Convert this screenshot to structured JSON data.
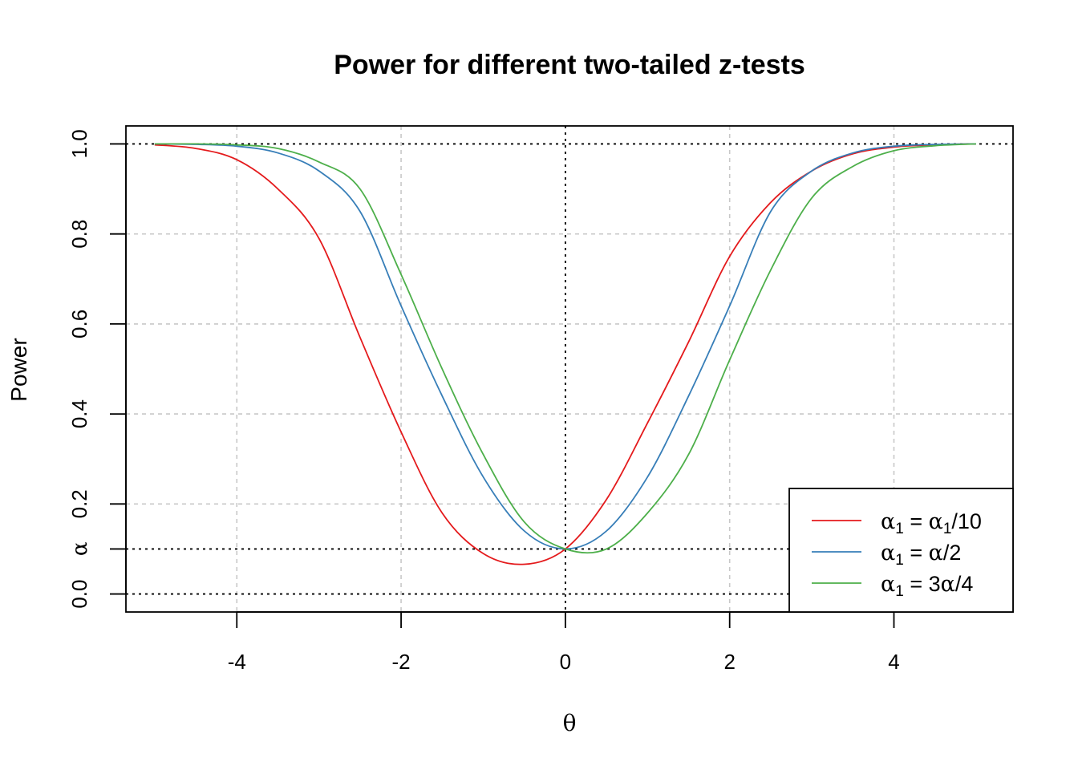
{
  "chart_data": {
    "type": "line",
    "title": "Power for different two-tailed z-tests",
    "xlabel": "θ",
    "ylabel": "Power",
    "xlim": [
      -5.35,
      5.45
    ],
    "ylim": [
      -0.04,
      1.04
    ],
    "x_ticks": [
      -4,
      -2,
      0,
      2,
      4
    ],
    "x_tick_labels": [
      "-4",
      "-2",
      "0",
      "2",
      "4"
    ],
    "y_ticks": [
      0.0,
      0.1,
      0.2,
      0.4,
      0.6,
      0.8,
      1.0
    ],
    "y_tick_labels": [
      "0.0",
      "α",
      "0.2",
      "0.4",
      "0.6",
      "0.8",
      "1.0"
    ],
    "grid": true,
    "reference_lines": {
      "horizontal": [
        0.0,
        0.1,
        1.0
      ],
      "vertical": [
        0
      ]
    },
    "legend_position": "bottom-right",
    "legend": {
      "red": [
        "α",
        "1",
        " = ",
        "α",
        "1",
        "/10"
      ],
      "blue": [
        "α",
        "1",
        " = ",
        "α",
        "/2"
      ],
      "green": [
        "α",
        "1",
        " = ",
        "3",
        "α",
        "/4"
      ]
    },
    "series": [
      {
        "key": "red",
        "color": "#E41A1C",
        "x": [
          -5,
          -4.5,
          -4,
          -3.5,
          -3,
          -2.5,
          -2,
          -1.5,
          -1,
          -0.5,
          0,
          0.5,
          1,
          1.5,
          2,
          2.5,
          3,
          3.5,
          4,
          4.5,
          5
        ],
        "values": [
          0.998,
          0.99,
          0.965,
          0.9,
          0.79,
          0.57,
          0.36,
          0.18,
          0.09,
          0.066,
          0.1,
          0.21,
          0.38,
          0.56,
          0.75,
          0.87,
          0.94,
          0.978,
          0.993,
          0.998,
          1.0
        ]
      },
      {
        "key": "blue",
        "color": "#377EB8",
        "x": [
          -5,
          -4.5,
          -4,
          -3.5,
          -3,
          -2.5,
          -2,
          -1.5,
          -1,
          -0.5,
          0,
          0.5,
          1,
          1.5,
          2,
          2.5,
          3,
          3.5,
          4,
          4.5,
          5
        ],
        "values": [
          1.0,
          0.999,
          0.995,
          0.98,
          0.94,
          0.85,
          0.64,
          0.44,
          0.26,
          0.14,
          0.1,
          0.14,
          0.26,
          0.44,
          0.64,
          0.85,
          0.94,
          0.98,
          0.995,
          0.999,
          1.0
        ]
      },
      {
        "key": "green",
        "color": "#4DAF4A",
        "x": [
          -5,
          -4.5,
          -4,
          -3.5,
          -3,
          -2.5,
          -2,
          -1.5,
          -1,
          -0.5,
          0,
          0.5,
          1,
          1.5,
          2,
          2.5,
          3,
          3.5,
          4,
          4.5,
          5
        ],
        "values": [
          1.0,
          1.0,
          0.998,
          0.99,
          0.96,
          0.9,
          0.71,
          0.5,
          0.31,
          0.16,
          0.1,
          0.1,
          0.18,
          0.31,
          0.52,
          0.72,
          0.88,
          0.95,
          0.985,
          0.996,
          1.0
        ]
      }
    ]
  }
}
